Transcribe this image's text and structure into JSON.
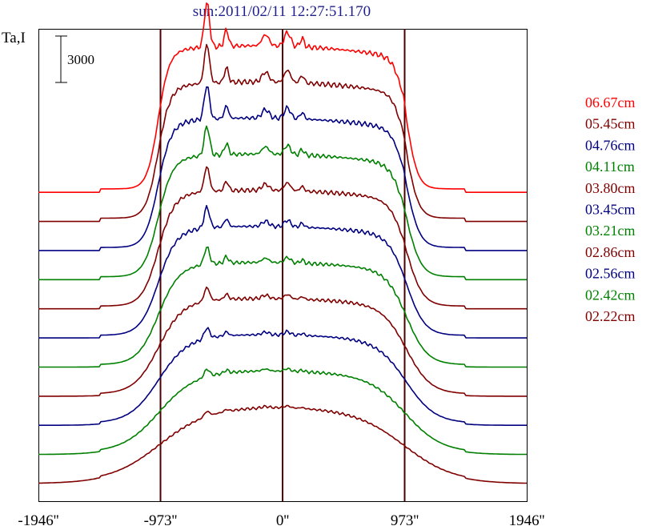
{
  "chart_data": {
    "type": "line",
    "title": "sun:2011/02/11 12:27:51.170",
    "ylabel": "Ta,I",
    "scale_bar_label": "3000",
    "scale_bar_value": 3000,
    "xlim": [
      -1946,
      1946
    ],
    "x_ticks": [
      {
        "value": -1946,
        "label": "-1946''"
      },
      {
        "value": -973,
        "label": "-973''"
      },
      {
        "value": 0,
        "label": "0''"
      },
      {
        "value": 973,
        "label": "973''"
      },
      {
        "value": 1946,
        "label": "1946''"
      }
    ],
    "vertical_lines": [
      -973,
      0,
      973
    ],
    "grid": false,
    "legend_position": "right",
    "colors": {
      "red": "#ff0000",
      "maroon": "#800000",
      "navy": "#000080",
      "green": "#008000",
      "axis": "#000000",
      "marker": "#4a0000",
      "title": "#1e1e8c"
    },
    "series": [
      {
        "name": "06.67cm",
        "color": "#ff0000"
      },
      {
        "name": "05.45cm",
        "color": "#800000"
      },
      {
        "name": "04.76cm",
        "color": "#000080"
      },
      {
        "name": "04.11cm",
        "color": "#008000"
      },
      {
        "name": "03.80cm",
        "color": "#800000"
      },
      {
        "name": "03.45cm",
        "color": "#000080"
      },
      {
        "name": "03.21cm",
        "color": "#008000"
      },
      {
        "name": "02.86cm",
        "color": "#800000"
      },
      {
        "name": "02.56cm",
        "color": "#000080"
      },
      {
        "name": "02.42cm",
        "color": "#008000"
      },
      {
        "name": "02.22cm",
        "color": "#800000"
      }
    ]
  }
}
